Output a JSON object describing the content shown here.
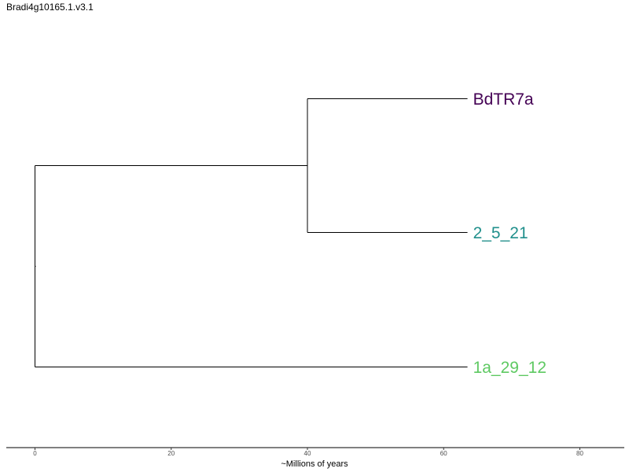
{
  "title": "Bradi4g10165.1.v3.1",
  "chart_data": {
    "type": "dendrogram",
    "xlabel": "~Millions of years",
    "xlim": [
      0,
      80
    ],
    "ticks": [
      0,
      20,
      40,
      60,
      80
    ],
    "tips": [
      {
        "label": "BdTR7a",
        "color": "#440154"
      },
      {
        "label": "2_5_21",
        "color": "#21908c"
      },
      {
        "label": "1a_29_12",
        "color": "#5ec962"
      }
    ],
    "nodes": [
      {
        "name": "root",
        "age": 0,
        "children": [
          "inner",
          "1a_29_12"
        ]
      },
      {
        "name": "inner",
        "age": 40,
        "children": [
          "BdTR7a",
          "2_5_21"
        ]
      }
    ],
    "tip_age": 63.5
  }
}
